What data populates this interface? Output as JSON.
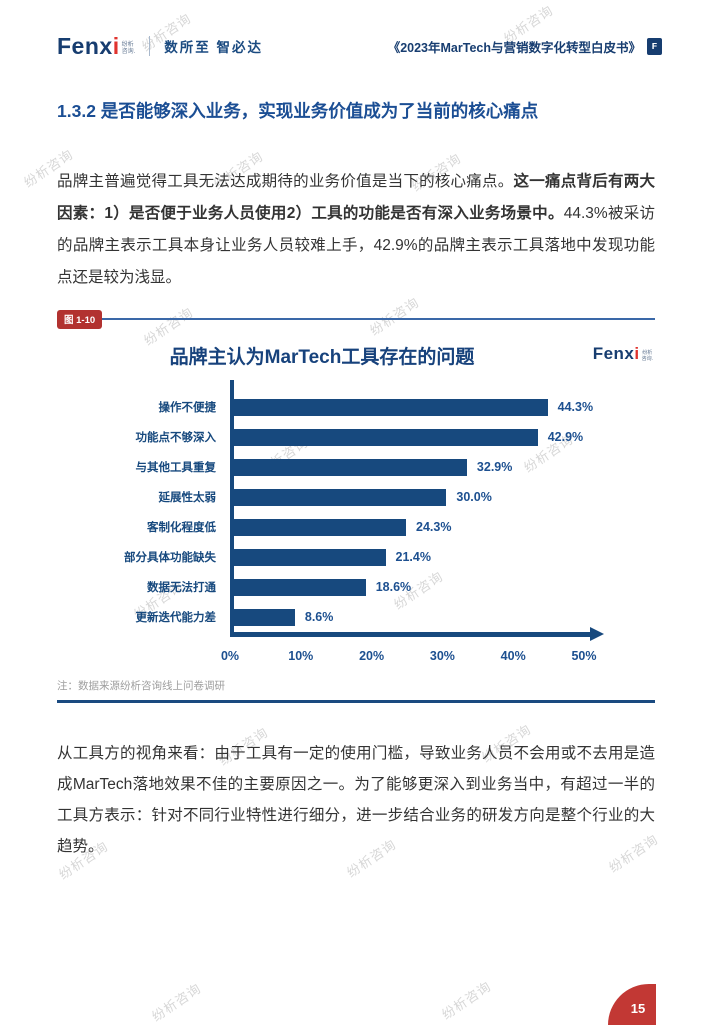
{
  "header": {
    "logo": {
      "brand": "Fenx",
      "brand_accent": "i",
      "suffix_line1": "纷析",
      "suffix_line2": "咨询."
    },
    "tagline": "数所至 智必达",
    "book_title": "《2023年MarTech与营销数字化转型白皮书》",
    "book_icon_label": "F"
  },
  "section": {
    "title": "1.3.2 是否能够深入业务，实现业务价值成为了当前的核心痛点"
  },
  "paragraph1_segments": [
    {
      "text": "品牌主普遍觉得工具无法达成期待的业务价值是当下的核心痛点。",
      "bold": false
    },
    {
      "text": "这一痛点背后有两大因素：1）是否便于业务人员使用2）工具的功能是否有深入业务场景中。",
      "bold": true
    },
    {
      "text": "44.3%被采访的品牌主表示工具本身让业务人员较难上手，42.9%的品牌主表示工具落地中发现功能点还是较为浅显。",
      "bold": false
    }
  ],
  "figure": {
    "label": "图 1-10",
    "note": "注：数据来源纷析咨询线上问卷调研"
  },
  "chart_data": {
    "type": "bar",
    "orientation": "horizontal",
    "title": "品牌主认为MarTech工具存在的问题",
    "categories": [
      "操作不便捷",
      "功能点不够深入",
      "与其他工具重复",
      "延展性太弱",
      "客制化程度低",
      "部分具体功能缺失",
      "数据无法打通",
      "更新迭代能力差"
    ],
    "values": [
      44.3,
      42.9,
      32.9,
      30.0,
      24.3,
      21.4,
      18.6,
      8.6
    ],
    "value_labels": [
      "44.3%",
      "42.9%",
      "32.9%",
      "30.0%",
      "24.3%",
      "21.4%",
      "18.6%",
      "8.6%"
    ],
    "xlim": [
      0,
      50
    ],
    "x_ticks": [
      "0%",
      "10%",
      "20%",
      "30%",
      "40%",
      "50%"
    ],
    "xlabel": "",
    "ylabel": "",
    "grid": false,
    "legend": false,
    "bar_color": "#17497E"
  },
  "paragraph2": "从工具方的视角来看：由于工具有一定的使用门槛，导致业务人员不会用或不去用是造成MarTech落地效果不佳的主要原因之一。为了能够更深入到业务当中，有超过一半的工具方表示：针对不同行业特性进行细分，进一步结合业务的研发方向是整个行业的大趋势。",
  "page_number": "15",
  "watermark_text": "纷析咨询",
  "colors": {
    "navy": "#17497E",
    "title_blue": "#1B4E94",
    "badge_red": "#B23230",
    "tab_red": "#C23834",
    "logo_red": "#E0332E",
    "note_gray": "#9E9E9E"
  }
}
